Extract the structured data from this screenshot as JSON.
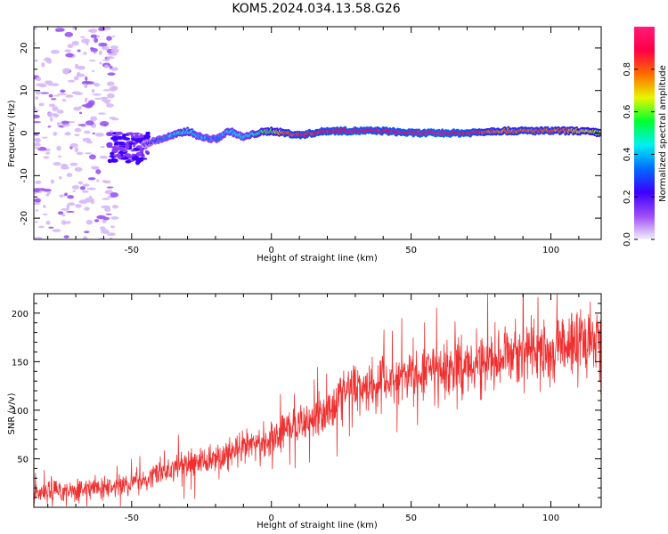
{
  "figure": {
    "title": "KOM5.2024.034.13.58.G26"
  },
  "chart_data": [
    {
      "type": "heatmap",
      "title": "",
      "xlabel": "Height of straight line (km)",
      "ylabel": "Frequency (Hz)",
      "xlim": [
        -85,
        118
      ],
      "ylim": [
        -25,
        25
      ],
      "xticks": [
        -50,
        0,
        50,
        100
      ],
      "yticks": [
        -20,
        -10,
        0,
        10,
        20
      ],
      "colorbar": {
        "label": "Normalized spectral amplitude",
        "range": [
          0,
          1
        ],
        "ticks": [
          "0.0",
          "0.2",
          "0.4",
          "0.6",
          "0.8"
        ],
        "stops": [
          "#f4f0fb",
          "#9d4bf5",
          "#3a00ff",
          "#006cff",
          "#00f0f0",
          "#00ff30",
          "#e8f500",
          "#ff6a00",
          "#ff0045",
          "#ff1a7a"
        ]
      },
      "trace": {
        "x": [
          -57,
          -53,
          -50,
          -47,
          -45,
          -40,
          -35,
          -30,
          -25,
          -20,
          -15,
          -10,
          -5,
          0,
          5,
          10,
          15,
          20,
          25,
          30,
          35,
          40,
          50,
          60,
          70,
          80,
          90,
          100,
          110,
          118
        ],
        "y": [
          -3.5,
          -4,
          -4.5,
          -3.5,
          -2.5,
          -1.5,
          -0.5,
          0.5,
          -1,
          -1.5,
          0.5,
          -1,
          0,
          0.5,
          0,
          -0.5,
          0,
          0.5,
          0.5,
          0.5,
          0.5,
          0.5,
          0,
          0,
          0,
          0.5,
          0.5,
          0.5,
          0.5,
          0
        ],
        "amplitude": [
          0.12,
          0.12,
          0.12,
          0.12,
          0.2,
          0.32,
          0.42,
          0.5,
          0.38,
          0.35,
          0.45,
          0.42,
          0.5,
          0.6,
          0.8,
          0.85,
          0.85,
          0.88,
          0.9,
          0.92,
          0.9,
          0.88,
          0.92,
          0.95,
          0.9,
          0.75,
          0.78,
          0.8,
          0.72,
          0.6
        ]
      }
    },
    {
      "type": "line",
      "title": "",
      "xlabel": "Height of straight line (km)",
      "ylabel": "SNR (v/v)",
      "xlim": [
        -85,
        118
      ],
      "ylim": [
        0,
        220
      ],
      "xticks": [
        -50,
        0,
        50,
        100
      ],
      "yticks": [
        50,
        100,
        150,
        200
      ],
      "color": "#ef3030",
      "trend": {
        "x": [
          -85,
          -70,
          -60,
          -55,
          -50,
          -40,
          -30,
          -20,
          -10,
          0,
          10,
          20,
          25,
          30,
          40,
          50,
          60,
          70,
          80,
          90,
          100,
          110,
          118
        ],
        "y": [
          15,
          18,
          20,
          22,
          25,
          35,
          45,
          50,
          60,
          72,
          85,
          100,
          118,
          125,
          128,
          135,
          140,
          148,
          155,
          160,
          162,
          172,
          175
        ]
      }
    }
  ]
}
